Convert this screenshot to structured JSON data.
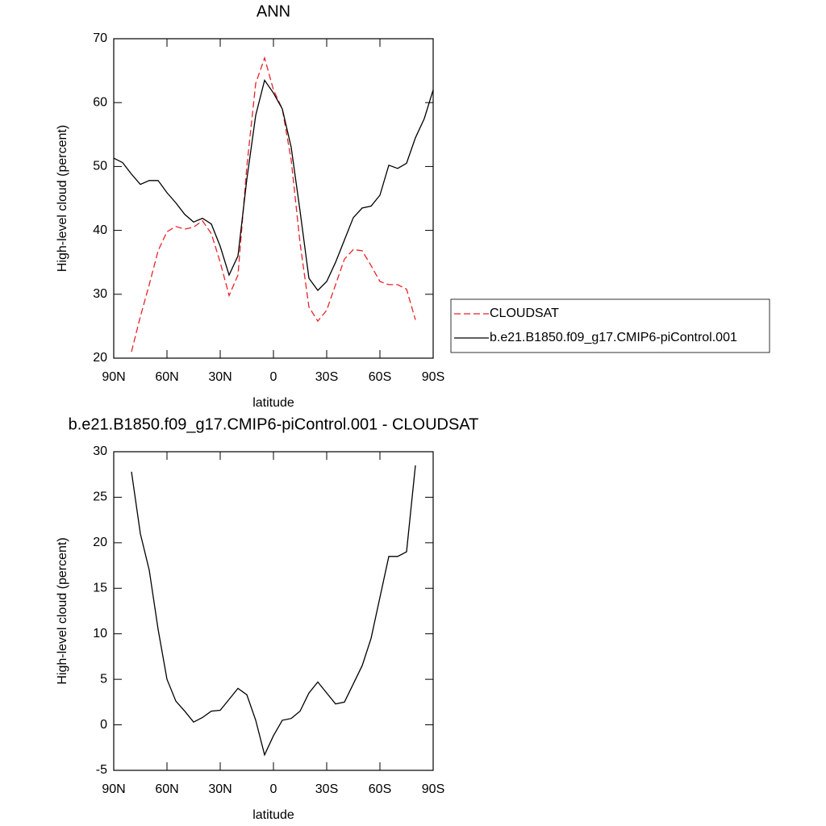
{
  "chart_data": [
    {
      "type": "line",
      "title": "ANN",
      "x_label": "latitude",
      "y_label": "High-level cloud (percent)",
      "x": [
        90,
        85,
        80,
        75,
        70,
        65,
        60,
        55,
        50,
        45,
        40,
        35,
        30,
        25,
        20,
        15,
        10,
        5,
        0,
        -5,
        -10,
        -15,
        -20,
        -25,
        -30,
        -35,
        -40,
        -45,
        -50,
        -55,
        -60,
        -65,
        -70,
        -75,
        -80,
        -85,
        -90
      ],
      "xlim": [
        90,
        -90
      ],
      "xticks": [
        {
          "value": 90,
          "label": "90N"
        },
        {
          "value": 60,
          "label": "60N"
        },
        {
          "value": 30,
          "label": "30N"
        },
        0,
        {
          "value": -30,
          "label": "30S"
        },
        {
          "value": -60,
          "label": "60S"
        },
        {
          "value": -90,
          "label": "90S"
        }
      ],
      "ylim": [
        20,
        70
      ],
      "yticks": [
        20,
        30,
        40,
        50,
        60,
        70
      ],
      "grid": false,
      "legend": "right",
      "series": [
        {
          "name": "CLOUDSAT",
          "color": "#e8232a",
          "line_style": "dashed",
          "values": [
            null,
            null,
            21.0,
            26.5,
            31.5,
            36.8,
            39.8,
            40.6,
            40.2,
            40.5,
            41.5,
            39.5,
            35,
            29.8,
            33,
            50,
            63,
            67,
            62,
            59,
            51,
            38,
            28,
            25.8,
            27.5,
            31.5,
            35.5,
            37,
            36.8,
            34.5,
            32,
            31.5,
            31.5,
            30.8,
            26,
            null,
            null
          ]
        },
        {
          "name": "b.e21.B1850.f09_g17.CMIP6-piControl.001",
          "color": "#000000",
          "line_style": "solid",
          "values": [
            51.3,
            50.6,
            48.8,
            47.2,
            47.8,
            47.8,
            45.9,
            44.3,
            42.5,
            41.3,
            41.9,
            41.0,
            37.5,
            33.0,
            36,
            48,
            58,
            63.5,
            61.5,
            59,
            53,
            43,
            32.5,
            30.6,
            32,
            35,
            38.5,
            42,
            43.5,
            43.8,
            45.5,
            50.2,
            49.7,
            50.5,
            54.5,
            57.5,
            62
          ]
        }
      ]
    },
    {
      "type": "line",
      "title": "b.e21.B1850.f09_g17.CMIP6-piControl.001 - CLOUDSAT",
      "x_label": "latitude",
      "y_label": "High-level cloud (percent)",
      "x": [
        80,
        75,
        70,
        65,
        60,
        55,
        50,
        45,
        40,
        35,
        30,
        25,
        20,
        15,
        10,
        5,
        0,
        -5,
        -10,
        -15,
        -20,
        -25,
        -30,
        -35,
        -40,
        -45,
        -50,
        -55,
        -60,
        -65,
        -70,
        -75,
        -80
      ],
      "xlim": [
        90,
        -90
      ],
      "xticks": [
        {
          "value": 90,
          "label": "90N"
        },
        {
          "value": 60,
          "label": "60N"
        },
        {
          "value": 30,
          "label": "30N"
        },
        0,
        {
          "value": -30,
          "label": "30S"
        },
        {
          "value": -60,
          "label": "60S"
        },
        {
          "value": -90,
          "label": "90S"
        }
      ],
      "ylim": [
        -5,
        30
      ],
      "yticks": [
        -5,
        0,
        5,
        10,
        15,
        20,
        25,
        30
      ],
      "grid": false,
      "series": [
        {
          "color": "#000000",
          "line_style": "solid",
          "values": [
            27.8,
            21,
            17,
            10.5,
            5,
            2.6,
            1.5,
            0.3,
            0.8,
            1.5,
            1.6,
            2.8,
            4.0,
            3.3,
            0.5,
            -3.3,
            -1.2,
            0.5,
            0.7,
            1.5,
            3.5,
            4.7,
            3.5,
            2.3,
            2.5,
            4.5,
            6.5,
            9.5,
            14,
            18.5,
            18.5,
            19,
            28.5
          ]
        }
      ]
    }
  ]
}
